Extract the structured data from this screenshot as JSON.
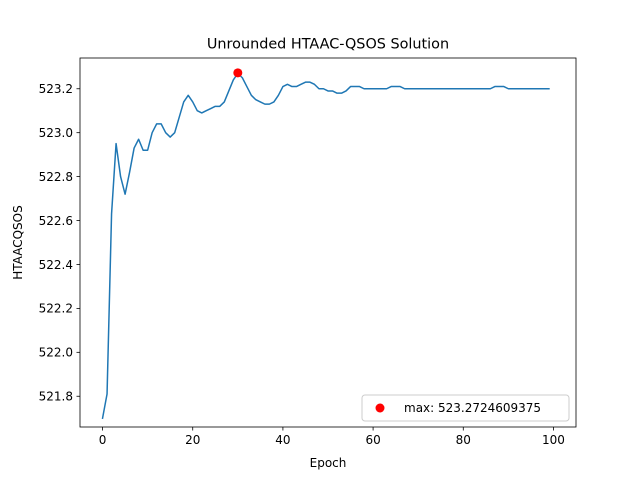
{
  "chart_data": {
    "type": "line",
    "title": "Unrounded HTAAC-QSOS Solution",
    "xlabel": "Epoch",
    "ylabel": "HTAACQSOS",
    "xlim": [
      -5,
      105
    ],
    "ylim": [
      521.66,
      523.34
    ],
    "xticks": [
      0,
      20,
      40,
      60,
      80,
      100
    ],
    "yticks": [
      521.8,
      522.0,
      522.2,
      522.4,
      522.6,
      522.8,
      523.0,
      523.2
    ],
    "ytick_labels": [
      "521.8",
      "522.0",
      "522.2",
      "522.4",
      "522.6",
      "522.8",
      "523.0",
      "523.2"
    ],
    "grid": false,
    "legend_position": "lower-right",
    "line_color": "#1f77b4",
    "marker_color": "#ff0000",
    "series": [
      {
        "x": [
          0,
          1,
          2,
          3,
          4,
          5,
          6,
          7,
          8,
          9,
          10,
          11,
          12,
          13,
          14,
          15,
          16,
          17,
          18,
          19,
          20,
          21,
          22,
          23,
          24,
          25,
          26,
          27,
          28,
          29,
          30,
          31,
          32,
          33,
          34,
          35,
          36,
          37,
          38,
          39,
          40,
          41,
          42,
          43,
          44,
          45,
          46,
          47,
          48,
          49,
          50,
          51,
          52,
          53,
          54,
          55,
          56,
          57,
          58,
          59,
          60,
          61,
          62,
          63,
          64,
          65,
          66,
          67,
          68,
          69,
          70,
          71,
          72,
          73,
          74,
          75,
          76,
          77,
          78,
          79,
          80,
          81,
          82,
          83,
          84,
          85,
          86,
          87,
          88,
          89,
          90,
          91,
          92,
          93,
          94,
          95,
          96,
          97,
          98,
          99
        ],
        "values": [
          521.7,
          521.81,
          522.63,
          522.95,
          522.8,
          522.72,
          522.82,
          522.93,
          522.97,
          522.92,
          522.92,
          523.0,
          523.04,
          523.04,
          523.0,
          522.98,
          523.0,
          523.07,
          523.14,
          523.17,
          523.14,
          523.1,
          523.09,
          523.1,
          523.11,
          523.12,
          523.12,
          523.14,
          523.19,
          523.24,
          523.27,
          523.25,
          523.21,
          523.17,
          523.15,
          523.14,
          523.13,
          523.13,
          523.14,
          523.17,
          523.21,
          523.22,
          523.21,
          523.21,
          523.22,
          523.23,
          523.23,
          523.22,
          523.2,
          523.2,
          523.19,
          523.19,
          523.18,
          523.18,
          523.19,
          523.21,
          523.21,
          523.21,
          523.2,
          523.2,
          523.2,
          523.2,
          523.2,
          523.2,
          523.21,
          523.21,
          523.21,
          523.2,
          523.2,
          523.2,
          523.2,
          523.2,
          523.2,
          523.2,
          523.2,
          523.2,
          523.2,
          523.2,
          523.2,
          523.2,
          523.2,
          523.2,
          523.2,
          523.2,
          523.2,
          523.2,
          523.2,
          523.21,
          523.21,
          523.21,
          523.2,
          523.2,
          523.2,
          523.2,
          523.2,
          523.2,
          523.2,
          523.2,
          523.2,
          523.2
        ]
      }
    ],
    "max_point": {
      "x": 30,
      "y": 523.2724609375,
      "label": "max: 523.2724609375"
    }
  }
}
